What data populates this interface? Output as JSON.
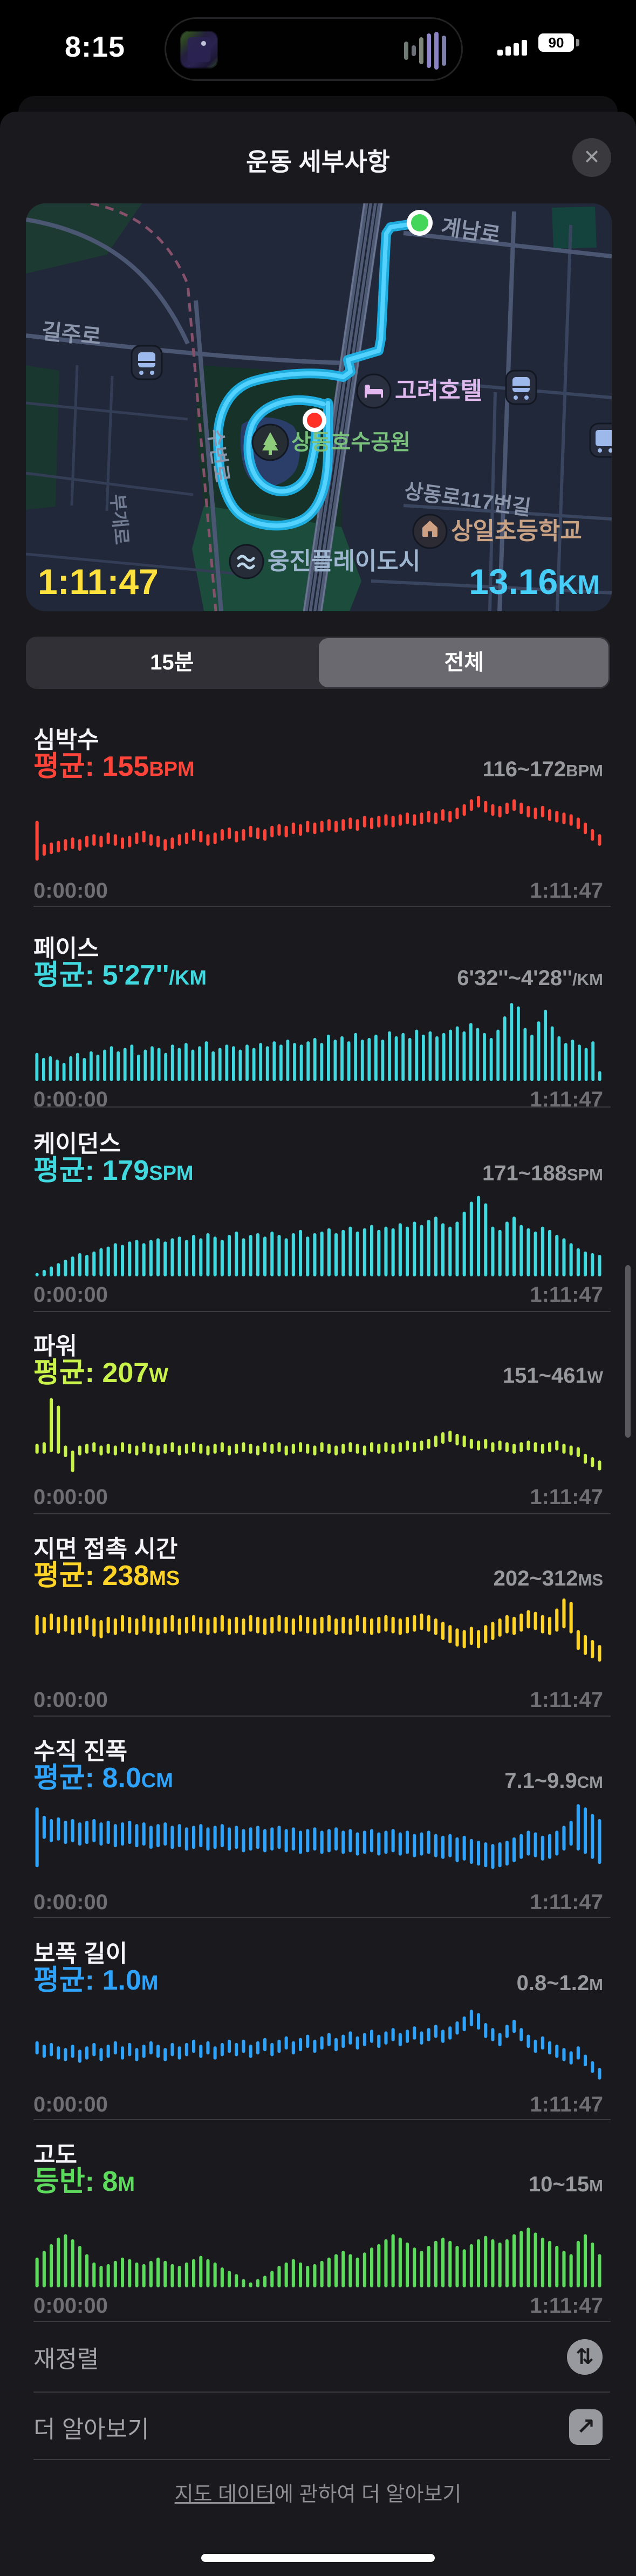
{
  "status_bar": {
    "time": "8:15",
    "battery_percent": "90"
  },
  "sheet": {
    "title": "운동 세부사항",
    "close_glyph": "✕"
  },
  "map": {
    "duration": "1:11:47",
    "distance": "13.16",
    "distance_unit": "KM",
    "streets": {
      "gyenamro": "계남로",
      "sangdong117": "상동로117번길",
      "giljuro": "길주로",
      "subyeonro": "수변로",
      "bugaero": "부개로"
    },
    "pois": {
      "hotel": "고려호텔",
      "lake_park": "상동호수공원",
      "school": "상일초등학교",
      "waterpark": "웅진플레이도시"
    }
  },
  "segmented": {
    "options": [
      {
        "label": "15분"
      },
      {
        "label": "전체"
      }
    ],
    "selected_index": 1
  },
  "sections": [
    {
      "title": "심박수",
      "avg_prefix": "평균: ",
      "avg_value": "155",
      "avg_unit": "BPM",
      "range": "116~172",
      "range_unit": "BPM",
      "color": "#FF453A",
      "x_start": "0:00:00",
      "x_end": "1:11:47",
      "type": "float",
      "bars": {
        "hi": [
          62,
          34,
          36,
          38,
          40,
          42,
          40,
          44,
          46,
          44,
          48,
          46,
          42,
          44,
          48,
          50,
          46,
          44,
          40,
          42,
          46,
          48,
          52,
          50,
          46,
          48,
          52,
          54,
          50,
          52,
          56,
          54,
          52,
          56,
          58,
          56,
          60,
          58,
          62,
          60,
          62,
          64,
          62,
          64,
          66,
          64,
          68,
          66,
          68,
          70,
          68,
          70,
          72,
          70,
          72,
          74,
          72,
          76,
          74,
          78,
          82,
          88,
          92,
          86,
          82,
          80,
          84,
          88,
          84,
          80,
          78,
          80,
          76,
          74,
          72,
          70,
          66,
          60,
          52,
          46
        ],
        "lo": [
          14,
          20,
          22,
          24,
          26,
          28,
          26,
          30,
          32,
          30,
          34,
          32,
          28,
          30,
          34,
          36,
          32,
          30,
          26,
          28,
          32,
          34,
          38,
          36,
          32,
          34,
          38,
          40,
          36,
          38,
          42,
          40,
          38,
          42,
          44,
          42,
          46,
          44,
          48,
          46,
          48,
          50,
          48,
          50,
          52,
          50,
          54,
          52,
          54,
          56,
          54,
          56,
          58,
          56,
          58,
          60,
          58,
          62,
          60,
          64,
          68,
          74,
          78,
          72,
          68,
          66,
          70,
          74,
          70,
          66,
          64,
          66,
          62,
          60,
          58,
          56,
          52,
          46,
          38,
          32
        ]
      }
    },
    {
      "title": "페이스",
      "avg_prefix": "평균: ",
      "avg_value": "5'27''",
      "avg_unit": "/KM",
      "range": "6'32''~4'28''",
      "range_unit": "/KM",
      "color": "#3FD9DF",
      "x_start": "0:00:00",
      "x_end": "1:11:47",
      "type": "bottom",
      "bars": {
        "v": [
          34,
          28,
          30,
          26,
          22,
          30,
          34,
          28,
          36,
          32,
          38,
          42,
          36,
          40,
          44,
          32,
          38,
          42,
          40,
          34,
          44,
          40,
          46,
          38,
          42,
          48,
          36,
          40,
          44,
          42,
          38,
          44,
          40,
          46,
          42,
          48,
          44,
          50,
          46,
          44,
          48,
          52,
          46,
          56,
          50,
          54,
          48,
          58,
          50,
          52,
          56,
          50,
          60,
          54,
          58,
          52,
          62,
          56,
          60,
          54,
          58,
          62,
          66,
          60,
          70,
          64,
          58,
          52,
          62,
          78,
          94,
          90,
          64,
          56,
          72,
          86,
          66,
          54,
          46,
          50,
          44,
          40,
          48,
          12
        ]
      }
    },
    {
      "title": "케이던스",
      "avg_prefix": "평균: ",
      "avg_value": "179",
      "avg_unit": "SPM",
      "range": "171~188",
      "range_unit": "SPM",
      "color": "#3FD9DF",
      "x_start": "0:00:00",
      "x_end": "1:11:47",
      "type": "bottom",
      "bars": {
        "v": [
          4,
          8,
          12,
          16,
          20,
          24,
          28,
          26,
          30,
          34,
          36,
          40,
          38,
          42,
          44,
          40,
          44,
          46,
          42,
          46,
          48,
          44,
          50,
          46,
          52,
          48,
          44,
          50,
          54,
          46,
          50,
          52,
          48,
          54,
          50,
          46,
          52,
          56,
          48,
          52,
          54,
          58,
          52,
          56,
          60,
          54,
          58,
          62,
          56,
          60,
          58,
          64,
          60,
          66,
          62,
          68,
          72,
          64,
          60,
          66,
          78,
          90,
          97,
          88,
          60,
          56,
          66,
          72,
          62,
          58,
          54,
          60,
          56,
          50,
          46,
          40,
          34,
          30,
          28,
          26
        ]
      }
    },
    {
      "title": "파워",
      "avg_prefix": "평균: ",
      "avg_value": "207",
      "avg_unit": "W",
      "range": "151~461",
      "range_unit": "W",
      "color": "#C9F34A",
      "x_start": "0:00:00",
      "x_end": "1:11:47",
      "type": "float",
      "bars": {
        "hi": [
          42,
          44,
          97,
          88,
          40,
          34,
          40,
          42,
          44,
          40,
          42,
          40,
          44,
          42,
          40,
          44,
          42,
          40,
          42,
          44,
          40,
          42,
          44,
          42,
          40,
          42,
          44,
          40,
          42,
          44,
          42,
          40,
          44,
          42,
          44,
          40,
          42,
          44,
          42,
          40,
          44,
          42,
          40,
          42,
          44,
          42,
          40,
          44,
          42,
          44,
          42,
          44,
          46,
          44,
          46,
          48,
          52,
          56,
          58,
          54,
          52,
          48,
          46,
          48,
          44,
          46,
          44,
          42,
          44,
          46,
          44,
          42,
          44,
          46,
          42,
          40,
          38,
          30,
          26,
          22
        ],
        "lo": [
          30,
          30,
          32,
          30,
          26,
          8,
          28,
          30,
          32,
          28,
          30,
          28,
          32,
          30,
          28,
          32,
          30,
          28,
          30,
          32,
          28,
          30,
          32,
          30,
          28,
          30,
          32,
          28,
          30,
          32,
          30,
          28,
          32,
          30,
          32,
          28,
          30,
          32,
          30,
          28,
          32,
          30,
          28,
          30,
          32,
          30,
          28,
          32,
          30,
          32,
          30,
          32,
          34,
          32,
          34,
          36,
          38,
          42,
          44,
          40,
          38,
          36,
          34,
          36,
          32,
          34,
          32,
          30,
          32,
          34,
          32,
          30,
          32,
          34,
          30,
          28,
          26,
          18,
          14,
          10
        ]
      }
    },
    {
      "title": "지면 접촉 시간",
      "avg_prefix": "평균: ",
      "avg_value": "238",
      "avg_unit": "MS",
      "range": "202~312",
      "range_unit": "MS",
      "color": "#FFD426",
      "x_start": "0:00:00",
      "x_end": "1:11:47",
      "type": "float",
      "bars": {
        "hi": [
          80,
          78,
          82,
          78,
          80,
          76,
          78,
          80,
          76,
          74,
          78,
          76,
          80,
          78,
          76,
          80,
          78,
          76,
          78,
          80,
          76,
          78,
          80,
          78,
          76,
          78,
          80,
          76,
          78,
          76,
          80,
          78,
          76,
          78,
          80,
          78,
          76,
          80,
          78,
          76,
          78,
          80,
          76,
          78,
          76,
          80,
          78,
          76,
          78,
          80,
          78,
          76,
          78,
          80,
          82,
          80,
          76,
          72,
          68,
          64,
          62,
          66,
          62,
          68,
          72,
          76,
          80,
          78,
          82,
          86,
          84,
          80,
          78,
          88,
          100,
          96,
          62,
          56,
          50,
          44
        ],
        "lo": [
          56,
          58,
          62,
          58,
          60,
          56,
          58,
          62,
          54,
          52,
          58,
          56,
          60,
          58,
          56,
          60,
          58,
          56,
          58,
          60,
          56,
          58,
          60,
          58,
          56,
          58,
          60,
          56,
          58,
          56,
          60,
          58,
          56,
          58,
          60,
          58,
          56,
          60,
          58,
          56,
          58,
          60,
          56,
          58,
          56,
          60,
          58,
          56,
          58,
          60,
          58,
          56,
          58,
          60,
          62,
          60,
          56,
          50,
          46,
          42,
          40,
          44,
          40,
          46,
          50,
          54,
          58,
          56,
          60,
          64,
          62,
          58,
          56,
          60,
          64,
          58,
          38,
          32,
          28,
          24
        ]
      }
    },
    {
      "title": "수직 진폭",
      "avg_prefix": "평균: ",
      "avg_value": "8.0",
      "avg_unit": "CM",
      "range": "7.1~9.9",
      "range_unit": "CM",
      "color": "#2FA2F9",
      "x_start": "0:00:00",
      "x_end": "1:11:47",
      "type": "float",
      "bars": {
        "hi": [
          92,
          82,
          78,
          80,
          76,
          78,
          74,
          76,
          78,
          74,
          76,
          72,
          74,
          76,
          72,
          74,
          70,
          72,
          74,
          70,
          72,
          68,
          70,
          72,
          68,
          70,
          72,
          68,
          70,
          66,
          68,
          70,
          66,
          68,
          70,
          66,
          68,
          64,
          66,
          68,
          64,
          66,
          68,
          64,
          66,
          62,
          64,
          66,
          62,
          64,
          66,
          62,
          64,
          60,
          62,
          64,
          60,
          58,
          60,
          56,
          58,
          54,
          52,
          50,
          48,
          50,
          52,
          56,
          60,
          64,
          62,
          58,
          60,
          64,
          70,
          76,
          96,
          92,
          84,
          78
        ],
        "lo": [
          20,
          54,
          50,
          52,
          48,
          50,
          46,
          48,
          50,
          46,
          48,
          44,
          46,
          48,
          44,
          46,
          42,
          44,
          46,
          42,
          44,
          40,
          42,
          44,
          40,
          42,
          44,
          40,
          42,
          38,
          40,
          42,
          38,
          40,
          42,
          38,
          40,
          36,
          38,
          40,
          36,
          38,
          40,
          36,
          38,
          34,
          36,
          38,
          34,
          36,
          38,
          34,
          36,
          32,
          34,
          36,
          32,
          30,
          32,
          26,
          28,
          24,
          22,
          20,
          18,
          20,
          22,
          26,
          30,
          34,
          32,
          28,
          30,
          34,
          40,
          46,
          40,
          36,
          30,
          24
        ]
      }
    },
    {
      "title": "보폭 길이",
      "avg_prefix": "평균: ",
      "avg_value": "1.0",
      "avg_unit": "M",
      "range": "0.8~1.2",
      "range_unit": "M",
      "color": "#2FA2F9",
      "x_start": "0:00:00",
      "x_end": "1:11:47",
      "type": "float",
      "bars": {
        "hi": [
          54,
          50,
          52,
          48,
          46,
          50,
          44,
          48,
          52,
          46,
          50,
          54,
          48,
          52,
          46,
          50,
          54,
          50,
          46,
          52,
          48,
          52,
          56,
          50,
          54,
          48,
          52,
          56,
          52,
          56,
          50,
          54,
          58,
          52,
          56,
          60,
          54,
          58,
          62,
          56,
          60,
          64,
          58,
          62,
          66,
          60,
          64,
          68,
          62,
          66,
          70,
          64,
          68,
          72,
          66,
          70,
          74,
          68,
          72,
          78,
          84,
          92,
          88,
          76,
          70,
          64,
          74,
          80,
          70,
          62,
          56,
          60,
          54,
          50,
          46,
          42,
          48,
          38,
          30,
          22
        ],
        "lo": [
          38,
          34,
          36,
          32,
          30,
          34,
          28,
          32,
          36,
          30,
          34,
          38,
          32,
          36,
          30,
          34,
          38,
          34,
          30,
          36,
          32,
          36,
          40,
          34,
          38,
          32,
          36,
          40,
          36,
          40,
          34,
          38,
          42,
          36,
          40,
          44,
          38,
          42,
          46,
          40,
          44,
          48,
          42,
          46,
          50,
          44,
          48,
          52,
          46,
          50,
          54,
          48,
          52,
          56,
          50,
          54,
          58,
          52,
          56,
          62,
          66,
          72,
          68,
          58,
          54,
          48,
          58,
          64,
          54,
          46,
          40,
          44,
          38,
          34,
          30,
          26,
          32,
          24,
          16,
          8
        ]
      }
    },
    {
      "title": "고도",
      "avg_prefix": "등반: ",
      "avg_value": "8",
      "avg_unit": "M",
      "range": "10~15",
      "range_unit": "M",
      "color": "#5CDB5C",
      "x_start": "0:00:00",
      "x_end": "1:11:47",
      "type": "bottom",
      "bars": {
        "v": [
          36,
          44,
          52,
          60,
          64,
          58,
          50,
          40,
          30,
          26,
          28,
          32,
          36,
          34,
          30,
          28,
          32,
          36,
          32,
          28,
          26,
          30,
          34,
          38,
          34,
          30,
          24,
          20,
          16,
          10,
          6,
          10,
          14,
          20,
          26,
          30,
          34,
          30,
          26,
          28,
          32,
          36,
          40,
          44,
          40,
          36,
          42,
          48,
          52,
          58,
          64,
          60,
          54,
          48,
          44,
          50,
          56,
          60,
          56,
          50,
          46,
          52,
          58,
          62,
          58,
          54,
          58,
          64,
          68,
          72,
          66,
          60,
          56,
          50,
          44,
          40,
          56,
          64,
          54,
          40
        ]
      }
    }
  ],
  "rows": [
    {
      "label": "재정렬",
      "icon_glyph": "⇅"
    },
    {
      "label": "더 알아보기",
      "icon_glyph": "↗"
    }
  ],
  "footer": {
    "link": "지도 데이터",
    "rest": "에 관하여 더 알아보기"
  }
}
